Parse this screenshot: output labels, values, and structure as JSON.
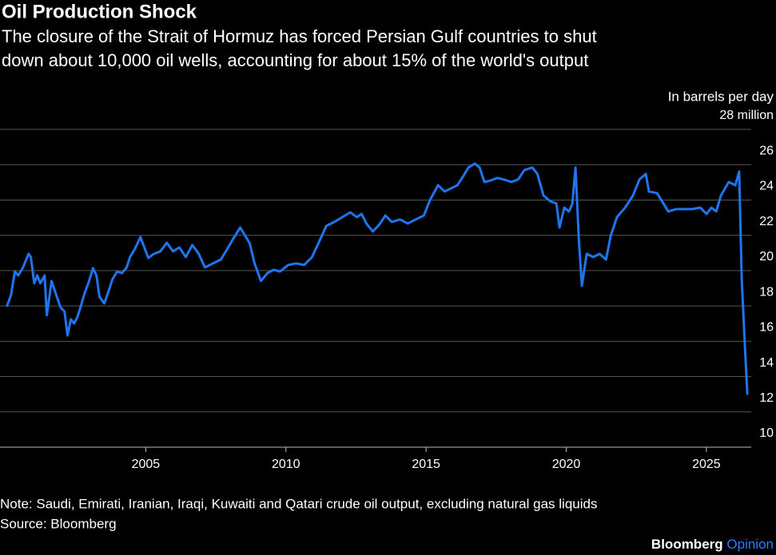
{
  "chart_data": {
    "type": "line",
    "title": "Oil Production Shock",
    "subtitle": [
      "The closure of the Strait of Hormuz has forced Persian Gulf countries to shut",
      "down about 10,000 oil wells, accounting for about 15% of the world's output"
    ],
    "y_axis_label": "In barrels per day",
    "note": "Note: Saudi, Emirati, Iranian, Iraqi, Kuwaiti and Qatari crude oil output, excluding natural gas liquids",
    "source": "Source: Bloomberg",
    "color": "#1f75ee",
    "grid": true,
    "xlim": [
      1999.8,
      2026.6
    ],
    "xticks": [
      2005,
      2010,
      2015,
      2020,
      2025
    ],
    "ylim": [
      10,
      28
    ],
    "yticks": [
      10,
      12,
      14,
      16,
      18,
      20,
      22,
      24,
      26,
      {
        "value": 28,
        "label": "28 million"
      }
    ],
    "x": [
      2000.05,
      2000.19,
      2000.33,
      2000.45,
      2000.62,
      2000.82,
      2000.9,
      2001.02,
      2001.13,
      2001.24,
      2001.39,
      2001.47,
      2001.64,
      2001.81,
      2001.96,
      2002.1,
      2002.21,
      2002.33,
      2002.44,
      2002.55,
      2002.67,
      2002.81,
      2002.95,
      2003.12,
      2003.24,
      2003.35,
      2003.52,
      2003.67,
      2003.81,
      2003.98,
      2004.15,
      2004.32,
      2004.44,
      2004.61,
      2004.81,
      2004.95,
      2005.09,
      2005.29,
      2005.52,
      2005.75,
      2005.97,
      2006.2,
      2006.43,
      2006.66,
      2006.89,
      2007.11,
      2007.4,
      2007.68,
      2007.94,
      2008.14,
      2008.37,
      2008.54,
      2008.71,
      2008.88,
      2009.11,
      2009.34,
      2009.56,
      2009.79,
      2010.08,
      2010.36,
      2010.65,
      2010.93,
      2011.16,
      2011.44,
      2011.73,
      2012.01,
      2012.3,
      2012.53,
      2012.7,
      2012.87,
      2013.1,
      2013.32,
      2013.55,
      2013.78,
      2014.07,
      2014.35,
      2014.63,
      2014.92,
      2015.15,
      2015.43,
      2015.66,
      2015.89,
      2016.12,
      2016.34,
      2016.51,
      2016.74,
      2016.91,
      2017.08,
      2017.31,
      2017.54,
      2017.77,
      2018.05,
      2018.28,
      2018.51,
      2018.79,
      2018.97,
      2019.19,
      2019.42,
      2019.65,
      2019.76,
      2019.93,
      2020.1,
      2020.22,
      2020.33,
      2020.45,
      2020.56,
      2020.73,
      2020.96,
      2021.19,
      2021.42,
      2021.59,
      2021.81,
      2022.1,
      2022.38,
      2022.61,
      2022.84,
      2022.95,
      2023.24,
      2023.47,
      2023.64,
      2023.92,
      2024.21,
      2024.49,
      2024.78,
      2025.01,
      2025.18,
      2025.35,
      2025.52,
      2025.8,
      2026.03,
      2026.17,
      2026.26,
      2026.37,
      2026.46
    ],
    "values": [
      18.01,
      18.6,
      19.95,
      19.73,
      20.18,
      20.95,
      20.77,
      19.28,
      19.73,
      19.28,
      19.73,
      17.47,
      19.41,
      18.6,
      17.92,
      17.69,
      16.33,
      17.24,
      17.01,
      17.33,
      17.92,
      18.69,
      19.28,
      20.14,
      19.73,
      18.51,
      18.14,
      18.82,
      19.5,
      19.95,
      19.86,
      20.18,
      20.77,
      21.22,
      21.9,
      21.31,
      20.72,
      20.95,
      21.09,
      21.58,
      21.09,
      21.31,
      20.77,
      21.45,
      20.95,
      20.18,
      20.41,
      20.63,
      21.31,
      21.86,
      22.44,
      21.99,
      21.54,
      20.41,
      19.41,
      19.86,
      20.05,
      19.95,
      20.32,
      20.41,
      20.32,
      20.77,
      21.54,
      22.53,
      22.76,
      23.03,
      23.3,
      23.03,
      23.21,
      22.67,
      22.22,
      22.58,
      23.12,
      22.76,
      22.9,
      22.67,
      22.9,
      23.12,
      24.03,
      24.84,
      24.48,
      24.66,
      24.84,
      25.38,
      25.84,
      26.06,
      25.84,
      25.02,
      25.11,
      25.25,
      25.16,
      25.02,
      25.16,
      25.7,
      25.84,
      25.48,
      24.25,
      23.94,
      23.8,
      22.44,
      23.57,
      23.35,
      23.8,
      25.84,
      21.76,
      19.14,
      20.95,
      20.77,
      20.95,
      20.63,
      21.99,
      23.03,
      23.57,
      24.25,
      25.16,
      25.48,
      24.48,
      24.39,
      23.8,
      23.35,
      23.48,
      23.48,
      23.48,
      23.57,
      23.21,
      23.57,
      23.35,
      24.25,
      25.02,
      24.84,
      25.61,
      19.5,
      15.88,
      13.03
    ]
  },
  "branding": {
    "name": "Bloomberg",
    "suffix": "Opinion"
  }
}
